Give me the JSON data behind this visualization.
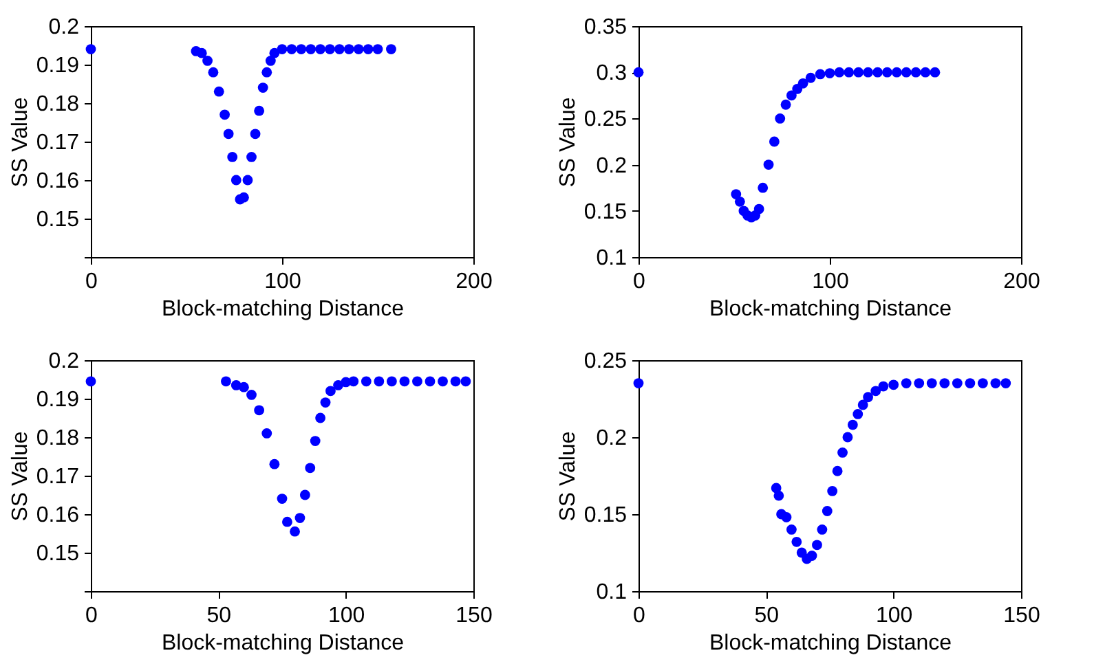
{
  "chart_data": [
    {
      "type": "scatter",
      "xlabel": "Block-matching Distance",
      "ylabel": "SS Value",
      "color": "#0000ff",
      "marker": "circle",
      "grid": false,
      "xlim": [
        0,
        200
      ],
      "ylim": [
        0.14,
        0.2
      ],
      "xticks": [
        0,
        100,
        200
      ],
      "yticks": [
        {
          "value": 0.14,
          "label": null
        },
        0.15,
        0.16,
        0.17,
        0.18,
        0.19,
        0.2
      ],
      "x": [
        0,
        55,
        58,
        61,
        64,
        67,
        70,
        72,
        74,
        76,
        78,
        80,
        82,
        84,
        86,
        88,
        90,
        92,
        94,
        96,
        100,
        105,
        110,
        115,
        120,
        125,
        130,
        135,
        140,
        145,
        150,
        157
      ],
      "values": [
        0.194,
        0.1935,
        0.193,
        0.191,
        0.188,
        0.183,
        0.177,
        0.172,
        0.166,
        0.16,
        0.155,
        0.1555,
        0.16,
        0.166,
        0.172,
        0.178,
        0.184,
        0.188,
        0.191,
        0.193,
        0.194,
        0.194,
        0.194,
        0.194,
        0.194,
        0.194,
        0.194,
        0.194,
        0.194,
        0.194,
        0.194,
        0.194
      ]
    },
    {
      "type": "scatter",
      "xlabel": "Block-matching Distance",
      "ylabel": "SS Value",
      "color": "#0000ff",
      "marker": "circle",
      "grid": false,
      "xlim": [
        0,
        200
      ],
      "ylim": [
        0.1,
        0.35
      ],
      "xticks": [
        0,
        100,
        200
      ],
      "yticks": [
        0.1,
        0.15,
        0.2,
        0.25,
        0.3,
        0.35
      ],
      "x": [
        0,
        51,
        53,
        55,
        57,
        59,
        61,
        63,
        65,
        68,
        71,
        74,
        77,
        80,
        83,
        86,
        90,
        95,
        100,
        105,
        110,
        115,
        120,
        125,
        130,
        135,
        140,
        145,
        150,
        155
      ],
      "values": [
        0.3,
        0.168,
        0.16,
        0.15,
        0.145,
        0.143,
        0.145,
        0.152,
        0.175,
        0.2,
        0.225,
        0.25,
        0.265,
        0.275,
        0.282,
        0.288,
        0.294,
        0.298,
        0.299,
        0.3,
        0.3,
        0.3,
        0.3,
        0.3,
        0.3,
        0.3,
        0.3,
        0.3,
        0.3,
        0.3
      ]
    },
    {
      "type": "scatter",
      "xlabel": "Block-matching Distance",
      "ylabel": "SS Value",
      "color": "#0000ff",
      "marker": "circle",
      "grid": false,
      "xlim": [
        0,
        150
      ],
      "ylim": [
        0.14,
        0.2
      ],
      "xticks": [
        0,
        50,
        100,
        150
      ],
      "yticks": [
        {
          "value": 0.14,
          "label": null
        },
        0.15,
        0.16,
        0.17,
        0.18,
        0.19,
        0.2
      ],
      "x": [
        0,
        53,
        57,
        60,
        63,
        66,
        69,
        72,
        75,
        77,
        80,
        82,
        84,
        86,
        88,
        90,
        92,
        94,
        97,
        100,
        103,
        108,
        113,
        118,
        123,
        128,
        133,
        138,
        143,
        147
      ],
      "values": [
        0.1945,
        0.1945,
        0.1935,
        0.193,
        0.191,
        0.187,
        0.181,
        0.173,
        0.164,
        0.158,
        0.1555,
        0.159,
        0.165,
        0.172,
        0.179,
        0.185,
        0.189,
        0.192,
        0.1935,
        0.1943,
        0.1945,
        0.1945,
        0.1945,
        0.1945,
        0.1945,
        0.1945,
        0.1945,
        0.1945,
        0.1945,
        0.1945
      ]
    },
    {
      "type": "scatter",
      "xlabel": "Block-matching Distance",
      "ylabel": "SS Value",
      "color": "#0000ff",
      "marker": "circle",
      "grid": false,
      "xlim": [
        0,
        150
      ],
      "ylim": [
        0.1,
        0.25
      ],
      "xticks": [
        0,
        50,
        100,
        150
      ],
      "yticks": [
        0.1,
        0.15,
        0.2,
        0.25
      ],
      "x": [
        0,
        54,
        55,
        56,
        58,
        60,
        62,
        64,
        66,
        68,
        70,
        72,
        74,
        76,
        78,
        80,
        82,
        84,
        86,
        88,
        90,
        93,
        96,
        100,
        105,
        110,
        115,
        120,
        125,
        130,
        135,
        140,
        144
      ],
      "values": [
        0.235,
        0.167,
        0.162,
        0.15,
        0.148,
        0.14,
        0.132,
        0.125,
        0.121,
        0.123,
        0.13,
        0.14,
        0.152,
        0.165,
        0.178,
        0.19,
        0.2,
        0.208,
        0.215,
        0.221,
        0.226,
        0.23,
        0.233,
        0.234,
        0.235,
        0.235,
        0.235,
        0.235,
        0.235,
        0.235,
        0.235,
        0.235,
        0.235
      ]
    }
  ]
}
